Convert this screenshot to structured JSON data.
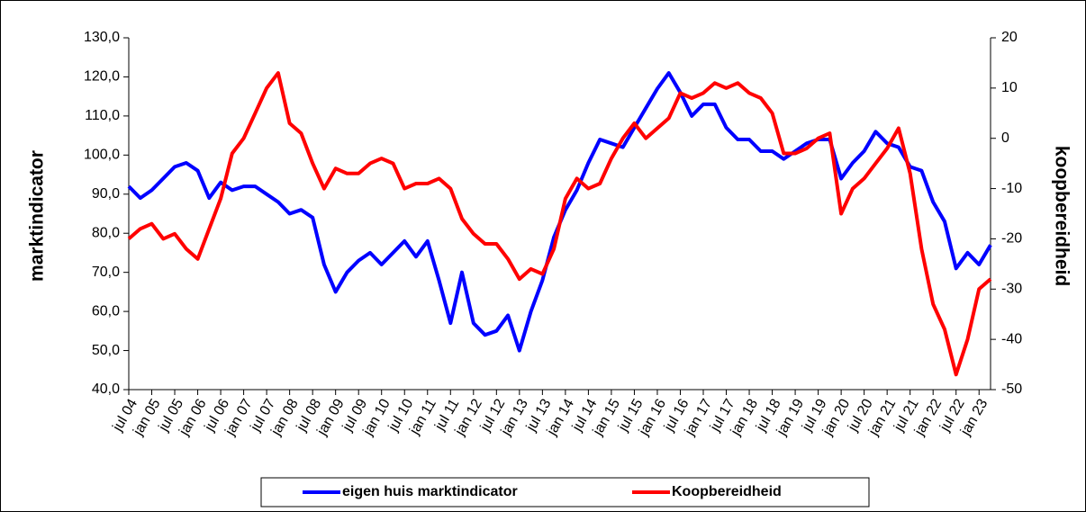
{
  "chart_data": {
    "type": "line",
    "y_label": "marktindicator",
    "y2_label": "koopbereidheid",
    "categories": [
      "jul 04",
      null,
      "jan 05",
      null,
      "jul 05",
      null,
      "jan 06",
      null,
      "jul 06",
      null,
      "jan 07",
      null,
      "jul 07",
      null,
      "jan 08",
      null,
      "jul 08",
      null,
      "jan 09",
      null,
      "jul 09",
      null,
      "jan 10",
      null,
      "jul 10",
      null,
      "jan 11",
      null,
      "jul 11",
      null,
      "jan 12",
      null,
      "jul 12",
      null,
      "jan 13",
      null,
      "jul 13",
      null,
      "jan 14",
      null,
      "jul 14",
      null,
      "jan 15",
      null,
      "jul 15",
      null,
      "jan 16",
      null,
      "jul 16",
      null,
      "jan 17",
      null,
      "jul 17",
      null,
      "jan 18",
      null,
      "jul 18",
      null,
      "jan 19",
      null,
      "jul 19",
      null,
      "jan 20",
      null,
      "jul 20",
      null,
      "jan 21",
      null,
      "jul 21",
      null,
      "jan 22",
      null,
      "jul 22",
      null,
      "jan 23",
      null
    ],
    "series": [
      {
        "name": "eigen huis marktindicator",
        "color": "#0000ff",
        "axis": "y",
        "values": [
          92,
          89,
          91,
          94,
          97,
          98,
          96,
          89,
          93,
          91,
          92,
          92,
          90,
          88,
          85,
          86,
          84,
          72,
          65,
          70,
          73,
          75,
          72,
          75,
          78,
          74,
          78,
          68,
          57,
          70,
          57,
          54,
          55,
          59,
          50,
          60,
          68,
          79,
          86,
          91,
          98,
          104,
          103,
          102,
          107,
          112,
          117,
          121,
          116,
          110,
          113,
          113,
          107,
          104,
          104,
          101,
          101,
          99,
          101,
          103,
          104,
          104,
          94,
          98,
          101,
          106,
          103,
          102,
          97,
          96,
          88,
          83,
          71,
          75,
          72,
          77
        ]
      },
      {
        "name": "Koopbereidheid",
        "color": "#ff0000",
        "axis": "y2",
        "values": [
          -20,
          -18,
          -17,
          -20,
          -19,
          -22,
          -24,
          -18,
          -12,
          -3,
          0,
          5,
          10,
          13,
          3,
          1,
          -5,
          -10,
          -6,
          -7,
          -7,
          -5,
          -4,
          -5,
          -10,
          -9,
          -9,
          -8,
          -10,
          -16,
          -19,
          -21,
          -21,
          -24,
          -28,
          -26,
          -27,
          -22,
          -12,
          -8,
          -10,
          -9,
          -4,
          0,
          3,
          0,
          2,
          4,
          9,
          8,
          9,
          11,
          10,
          11,
          9,
          8,
          5,
          -3,
          -3,
          -2,
          0,
          1,
          -15,
          -10,
          -8,
          -5,
          -2,
          2,
          -7,
          -22,
          -33,
          -38,
          -47,
          -40,
          -30,
          -28
        ]
      }
    ],
    "ylim": [
      40,
      130
    ],
    "yticks": [
      {
        "value": 40,
        "label": "40,0"
      },
      {
        "value": 50,
        "label": "50,0"
      },
      {
        "value": 60,
        "label": "60,0"
      },
      {
        "value": 70,
        "label": "70,0"
      },
      {
        "value": 80,
        "label": "80,0"
      },
      {
        "value": 90,
        "label": "90,0"
      },
      {
        "value": 100,
        "label": "100,0"
      },
      {
        "value": 110,
        "label": "110,0"
      },
      {
        "value": 120,
        "label": "120,0"
      },
      {
        "value": 130,
        "label": "130,0"
      }
    ],
    "y2lim": [
      -50,
      20
    ],
    "y2ticks": [
      -50,
      -40,
      -30,
      -20,
      -10,
      0,
      10,
      20
    ],
    "legend": "bottom"
  }
}
